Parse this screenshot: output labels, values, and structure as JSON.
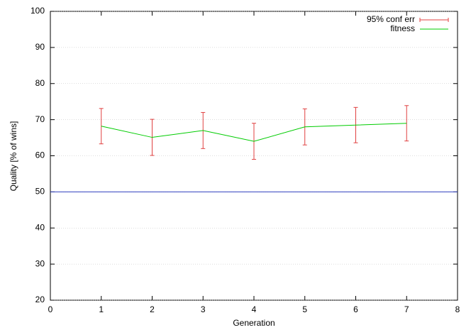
{
  "chart_data": {
    "type": "line",
    "xlabel": "Generation",
    "ylabel": "Quality [% of wins]",
    "x": [
      1,
      2,
      3,
      4,
      5,
      6,
      7
    ],
    "series": [
      {
        "name": "fitness",
        "color": "#00cc00",
        "values": [
          68.2,
          65.1,
          67.0,
          64.0,
          68.0,
          68.5,
          69.0
        ]
      }
    ],
    "error_bars": {
      "name": "95% conf err",
      "color": "#e04040",
      "errors": [
        4.9,
        5.0,
        5.0,
        5.0,
        5.0,
        4.9,
        4.9
      ]
    },
    "reference_line": {
      "value": 50,
      "color": "#3040c0"
    },
    "xlim": [
      0,
      8
    ],
    "xticks": [
      0,
      1,
      2,
      3,
      4,
      5,
      6,
      7,
      8
    ],
    "ylim": [
      20,
      100
    ],
    "yticks": [
      20,
      30,
      40,
      50,
      60,
      70,
      80,
      90,
      100
    ],
    "grid": "y",
    "legend": "top-right"
  }
}
